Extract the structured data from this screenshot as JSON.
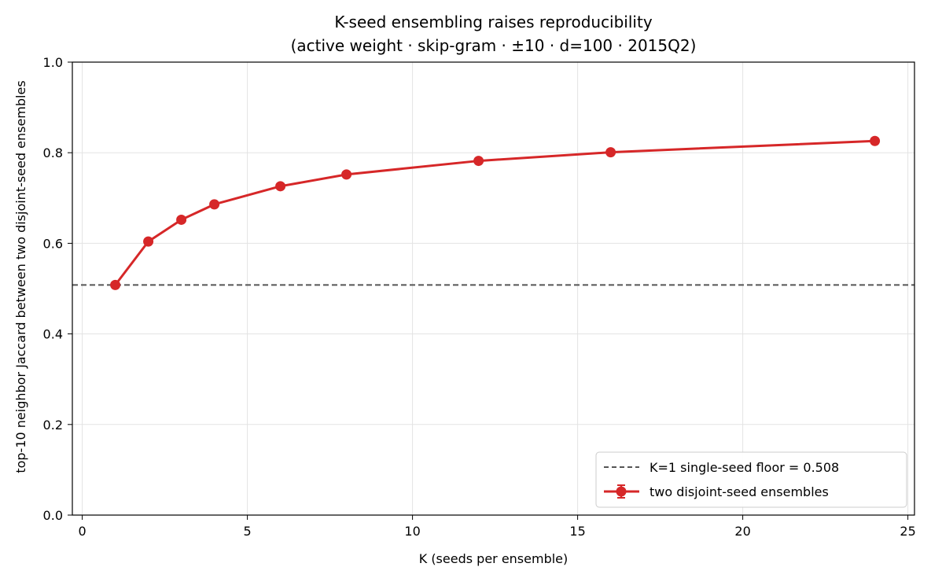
{
  "chart_data": {
    "type": "line",
    "title": "K-seed ensembling raises reproducibility",
    "subtitle": "(active weight · skip-gram · ±10 · d=100 · 2015Q2)",
    "xlabel": "K  (seeds per ensemble)",
    "ylabel": "top-10 neighbor Jaccard between two disjoint-seed ensembles",
    "xlim": [
      -0.3,
      25.2
    ],
    "ylim": [
      0.0,
      1.0
    ],
    "xticks": [
      0,
      5,
      10,
      15,
      20,
      25
    ],
    "yticks": [
      0.0,
      0.2,
      0.4,
      0.6,
      0.8,
      1.0
    ],
    "grid": true,
    "legend_position": "lower-right",
    "series": [
      {
        "name": "two disjoint-seed ensembles",
        "color": "#d62728",
        "marker": "circle",
        "x": [
          1,
          2,
          3,
          4,
          6,
          8,
          12,
          16,
          24
        ],
        "y": [
          0.508,
          0.604,
          0.652,
          0.686,
          0.726,
          0.752,
          0.782,
          0.801,
          0.826
        ]
      }
    ],
    "reference_lines": [
      {
        "name": "K=1 single-seed floor = 0.508",
        "orientation": "horizontal",
        "value": 0.508,
        "color": "#555555",
        "style": "dashed"
      }
    ]
  }
}
